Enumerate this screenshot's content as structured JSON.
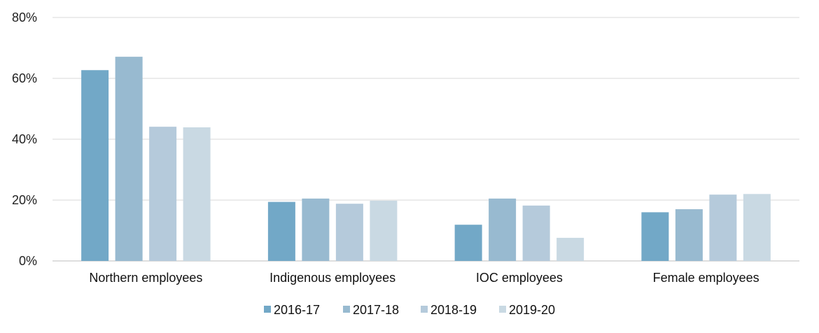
{
  "chart_data": {
    "type": "bar",
    "title": "",
    "xlabel": "",
    "ylabel": "",
    "categories": [
      "Northern employees",
      "Indigenous employees",
      "IOC employees",
      "Female employees"
    ],
    "series": [
      {
        "name": "2016-17",
        "color": "#72a8c7",
        "values": [
          62.7,
          19.4,
          11.9,
          16.0
        ]
      },
      {
        "name": "2017-18",
        "color": "#98bad0",
        "values": [
          67.1,
          20.5,
          20.5,
          17.0
        ]
      },
      {
        "name": "2018-19",
        "color": "#b5cadb",
        "values": [
          44.1,
          18.8,
          18.2,
          21.8
        ]
      },
      {
        "name": "2019-20",
        "color": "#c9d9e3",
        "values": [
          43.9,
          19.8,
          7.6,
          22.0
        ]
      }
    ],
    "ylim": [
      0,
      80
    ],
    "yticks": [
      0,
      20,
      40,
      60,
      80
    ],
    "ytick_labels": [
      "0%",
      "20%",
      "40%",
      "60%",
      "80%"
    ],
    "grid": true,
    "legend_position": "bottom"
  }
}
